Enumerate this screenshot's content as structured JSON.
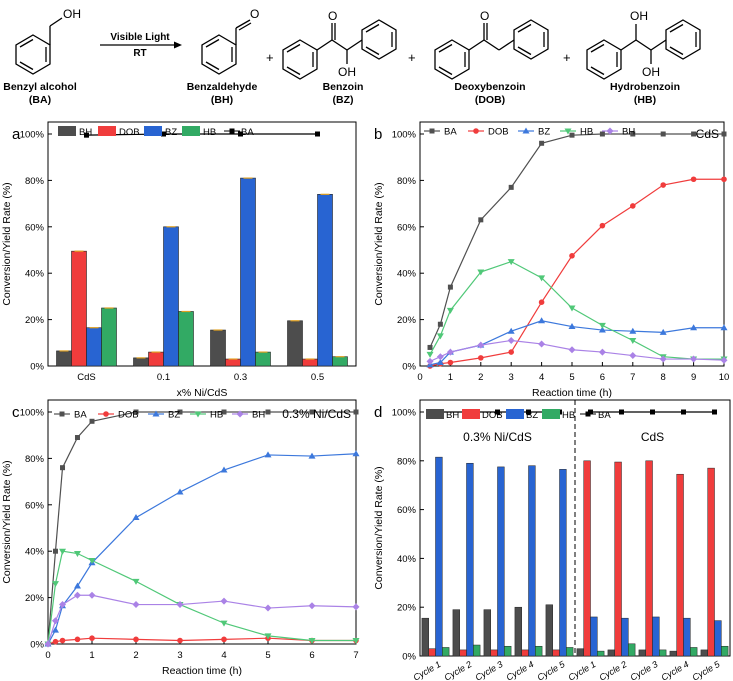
{
  "scheme": {
    "arrow_top": "Visible Light",
    "arrow_bottom": "RT",
    "oh": "OH",
    "o": "O",
    "plus": "+",
    "compounds": [
      {
        "name": "Benzyl alcohol",
        "abbr": "(BA)"
      },
      {
        "name": "Benzaldehyde",
        "abbr": "(BH)"
      },
      {
        "name": "Benzoin",
        "abbr": "(BZ)"
      },
      {
        "name": "Deoxybenzoin",
        "abbr": "(DOB)"
      },
      {
        "name": "Hydrobenzoin",
        "abbr": "(HB)"
      }
    ]
  },
  "colors": {
    "BH": "#4d4d4d",
    "DOB": "#f03c3c",
    "BZ": "#2864d2",
    "HB": "#32aa64",
    "BA": "#505050",
    "BZline": "#3c78dc",
    "HBline": "#50c878",
    "BHline": "#aa82e6"
  },
  "chart_data": [
    {
      "panel": "a",
      "type": "bar",
      "ylabel": "Conversion/Yield Rate (%)",
      "xlabel": "x% Ni/CdS",
      "ylim": [
        0,
        100
      ],
      "yticks": [
        "0%",
        "20%",
        "40%",
        "60%",
        "80%",
        "100%"
      ],
      "categories": [
        "CdS",
        "0.1",
        "0.3",
        "0.5"
      ],
      "series": [
        {
          "name": "BH",
          "values": [
            6.5,
            3.5,
            15.5,
            19.5
          ]
        },
        {
          "name": "DOB",
          "values": [
            49.5,
            6,
            3,
            3
          ]
        },
        {
          "name": "BZ",
          "values": [
            16.5,
            60,
            81,
            74
          ]
        },
        {
          "name": "HB",
          "values": [
            25,
            23.5,
            6,
            4
          ]
        }
      ],
      "line": {
        "name": "BA",
        "values": [
          99.5,
          100,
          100,
          100
        ]
      },
      "legend": [
        "BH",
        "DOB",
        "BZ",
        "HB",
        "BA"
      ]
    },
    {
      "panel": "b",
      "type": "line",
      "annotation": "CdS",
      "ylabel": "Conversion/Yield Rate (%)",
      "xlabel": "Reaction time (h)",
      "xlim": [
        0,
        10
      ],
      "ylim": [
        0,
        100
      ],
      "xticks": [
        "0",
        "1",
        "2",
        "3",
        "4",
        "5",
        "6",
        "7",
        "8",
        "9",
        "10"
      ],
      "yticks": [
        "0%",
        "20%",
        "40%",
        "60%",
        "80%",
        "100%"
      ],
      "x": [
        0.33,
        0.67,
        1,
        2,
        3,
        4,
        5,
        6,
        7,
        8,
        9,
        10
      ],
      "series": [
        {
          "name": "BA",
          "values": [
            8,
            18,
            34,
            63,
            77,
            96,
            99.5,
            100,
            100,
            100,
            100,
            100
          ]
        },
        {
          "name": "DOB",
          "values": [
            0,
            1,
            1.5,
            3.5,
            6,
            27.5,
            47.5,
            60.5,
            69,
            78,
            80.5,
            80.5
          ]
        },
        {
          "name": "BZ",
          "values": [
            0.5,
            1.5,
            6,
            9,
            15,
            19.5,
            17,
            15.5,
            15,
            14.5,
            16.5,
            16.5
          ]
        },
        {
          "name": "HB",
          "values": [
            5,
            13,
            24,
            40.5,
            45,
            38,
            25,
            17.5,
            11,
            4,
            3,
            3
          ]
        },
        {
          "name": "BH",
          "values": [
            2,
            4,
            6,
            9,
            11,
            9.5,
            7,
            6,
            4.5,
            3,
            3,
            2.5
          ]
        }
      ]
    },
    {
      "panel": "c",
      "type": "line",
      "annotation": "0.3% Ni/CdS",
      "ylabel": "Conversion/Yield Rate (%)",
      "xlabel": "Reaction time (h)",
      "xlim": [
        0,
        7
      ],
      "ylim": [
        0,
        100
      ],
      "xticks": [
        "0",
        "1",
        "2",
        "3",
        "4",
        "5",
        "6",
        "7"
      ],
      "yticks": [
        "0%",
        "20%",
        "40%",
        "60%",
        "80%",
        "100%"
      ],
      "x": [
        0,
        0.17,
        0.33,
        0.67,
        1,
        2,
        3,
        4,
        5,
        6,
        7
      ],
      "series": [
        {
          "name": "BA",
          "values": [
            0,
            40,
            76,
            89,
            96,
            100,
            100,
            100,
            100,
            100,
            100
          ]
        },
        {
          "name": "DOB",
          "values": [
            0,
            1,
            1.5,
            2,
            2.5,
            2,
            1.5,
            2,
            2.5,
            1.5,
            1.5
          ]
        },
        {
          "name": "BZ",
          "values": [
            0,
            6,
            16.5,
            25,
            35,
            54.5,
            65.5,
            75,
            81.5,
            81,
            82
          ]
        },
        {
          "name": "HB",
          "values": [
            0,
            26,
            40,
            39,
            36,
            27,
            17,
            9,
            3.5,
            1.5,
            1.5
          ]
        },
        {
          "name": "BH",
          "values": [
            0,
            10,
            17,
            21,
            21,
            17,
            17,
            18.5,
            15.5,
            16.5,
            16
          ]
        }
      ]
    },
    {
      "panel": "d",
      "type": "bar",
      "ylabel": "Conversion/Yield Rate (%)",
      "xlabel": "",
      "ylim": [
        0,
        100
      ],
      "yticks": [
        "0%",
        "20%",
        "40%",
        "60%",
        "80%",
        "100%"
      ],
      "categories": [
        "Cycle 1",
        "Cycle 2",
        "Cycle 3",
        "Cycle 4",
        "Cycle 5",
        "Cycle 1",
        "Cycle 2",
        "Cycle 3",
        "Cycle 4",
        "Cycle 5"
      ],
      "group_labels": [
        "0.3% Ni/CdS",
        "CdS"
      ],
      "series": [
        {
          "name": "BH",
          "values": [
            15.5,
            19,
            19,
            20,
            21,
            3,
            2.5,
            2.5,
            2,
            2.5
          ]
        },
        {
          "name": "DOB",
          "values": [
            3,
            2.5,
            2.5,
            2.5,
            2.5,
            80,
            79.5,
            80,
            74.5,
            77
          ]
        },
        {
          "name": "BZ",
          "values": [
            81.5,
            79,
            77.5,
            78,
            76.5,
            16,
            15.5,
            16,
            15.5,
            14.5
          ]
        },
        {
          "name": "HB",
          "values": [
            3.5,
            4.5,
            4,
            4,
            3.5,
            2,
            5,
            2.5,
            3.5,
            4
          ]
        }
      ],
      "line": {
        "name": "BA",
        "values": [
          100,
          100,
          100,
          100,
          100,
          100,
          100,
          100,
          100,
          100
        ]
      },
      "legend": [
        "BH",
        "DOB",
        "BZ",
        "HB",
        "BA"
      ]
    }
  ]
}
